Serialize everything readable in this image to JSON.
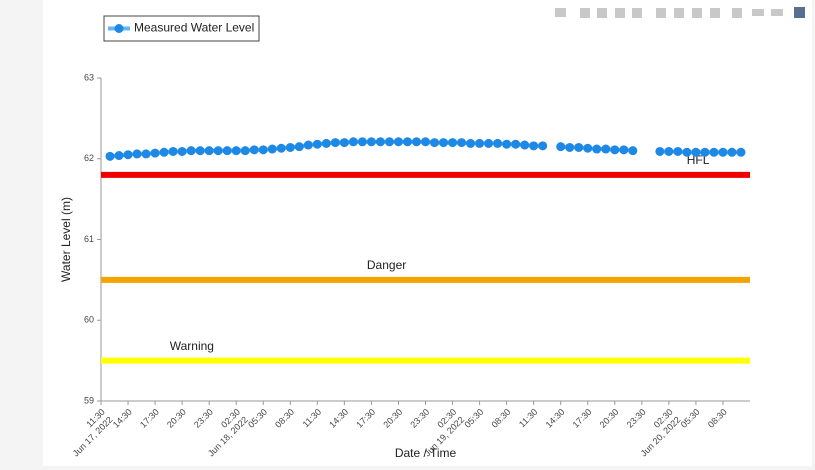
{
  "chart_data": {
    "type": "line",
    "x_label": "Date / Time",
    "y_label": "Water Level (m)",
    "legend": "top left",
    "grid": false,
    "x": [
      "2022-06-17T12:30",
      "2022-06-17T13:30",
      "2022-06-17T14:30",
      "2022-06-17T15:30",
      "2022-06-17T16:30",
      "2022-06-17T17:30",
      "2022-06-17T18:30",
      "2022-06-17T19:30",
      "2022-06-17T20:30",
      "2022-06-17T21:30",
      "2022-06-17T22:30",
      "2022-06-17T23:30",
      "2022-06-18T00:30",
      "2022-06-18T01:30",
      "2022-06-18T02:30",
      "2022-06-18T03:30",
      "2022-06-18T04:30",
      "2022-06-18T05:30",
      "2022-06-18T06:30",
      "2022-06-18T07:30",
      "2022-06-18T08:30",
      "2022-06-18T09:30",
      "2022-06-18T10:30",
      "2022-06-18T11:30",
      "2022-06-18T12:30",
      "2022-06-18T13:30",
      "2022-06-18T14:30",
      "2022-06-18T15:30",
      "2022-06-18T16:30",
      "2022-06-18T17:30",
      "2022-06-18T18:30",
      "2022-06-18T19:30",
      "2022-06-18T20:30",
      "2022-06-18T21:30",
      "2022-06-18T22:30",
      "2022-06-18T23:30",
      "2022-06-19T00:30",
      "2022-06-19T01:30",
      "2022-06-19T02:30",
      "2022-06-19T03:30",
      "2022-06-19T04:30",
      "2022-06-19T05:30",
      "2022-06-19T06:30",
      "2022-06-19T07:30",
      "2022-06-19T08:30",
      "2022-06-19T09:30",
      "2022-06-19T10:30",
      "2022-06-19T11:30",
      "2022-06-19T12:30",
      "2022-06-19T13:30",
      "2022-06-19T14:30",
      "2022-06-19T15:30",
      "2022-06-19T16:30",
      "2022-06-19T17:30",
      "2022-06-19T18:30",
      "2022-06-19T19:30",
      "2022-06-19T20:30",
      "2022-06-19T21:30",
      "2022-06-19T22:30",
      "2022-06-19T23:30",
      "2022-06-20T00:30",
      "2022-06-20T01:30",
      "2022-06-20T02:30",
      "2022-06-20T03:30",
      "2022-06-20T04:30",
      "2022-06-20T05:30",
      "2022-06-20T06:30",
      "2022-06-20T07:30",
      "2022-06-20T08:30",
      "2022-06-20T09:30",
      "2022-06-20T10:30"
    ],
    "series": [
      {
        "name": "Measured Water Level",
        "color": "#1e88e5",
        "line_color": "#64b5f6",
        "values": [
          62.03,
          62.04,
          62.05,
          62.06,
          62.06,
          62.07,
          62.08,
          62.09,
          62.09,
          62.1,
          62.1,
          62.1,
          62.1,
          62.1,
          62.1,
          62.1,
          62.11,
          62.11,
          62.12,
          62.13,
          62.14,
          62.15,
          62.17,
          62.18,
          62.19,
          62.2,
          62.2,
          62.21,
          62.21,
          62.21,
          62.21,
          62.21,
          62.21,
          62.21,
          62.21,
          62.21,
          62.2,
          62.2,
          62.2,
          62.2,
          62.19,
          62.19,
          62.19,
          62.19,
          62.18,
          62.18,
          62.17,
          62.16,
          62.16,
          null,
          62.15,
          62.14,
          62.14,
          62.13,
          62.12,
          62.12,
          62.11,
          62.11,
          62.1,
          null,
          null,
          62.09,
          62.09,
          62.09,
          62.08,
          62.08,
          62.08,
          62.08,
          62.08,
          62.08,
          62.08
        ]
      }
    ],
    "thresholds": [
      {
        "name": "HFL",
        "value": 61.8,
        "color": "#ee0000"
      },
      {
        "name": "Danger",
        "value": 60.5,
        "color": "#f5a300"
      },
      {
        "name": "Warning",
        "value": 59.5,
        "color": "#ffff00"
      }
    ],
    "xlim": [
      "2022-06-17T11:30",
      "2022-06-20T11:30"
    ],
    "xticks": [
      {
        "value": "2022-06-17T11:30",
        "label": "11:30\nJun 17, 2022"
      },
      {
        "value": "2022-06-17T14:30",
        "label": "14:30"
      },
      {
        "value": "2022-06-17T17:30",
        "label": "17:30"
      },
      {
        "value": "2022-06-17T20:30",
        "label": "20:30"
      },
      {
        "value": "2022-06-17T23:30",
        "label": "23:30"
      },
      {
        "value": "2022-06-18T02:30",
        "label": "02:30\nJun 18, 2022"
      },
      {
        "value": "2022-06-18T05:30",
        "label": "05:30"
      },
      {
        "value": "2022-06-18T08:30",
        "label": "08:30"
      },
      {
        "value": "2022-06-18T11:30",
        "label": "11:30"
      },
      {
        "value": "2022-06-18T14:30",
        "label": "14:30"
      },
      {
        "value": "2022-06-18T17:30",
        "label": "17:30"
      },
      {
        "value": "2022-06-18T20:30",
        "label": "20:30"
      },
      {
        "value": "2022-06-18T23:30",
        "label": "23:30"
      },
      {
        "value": "2022-06-19T02:30",
        "label": "02:30\nJun 19, 2022"
      },
      {
        "value": "2022-06-19T05:30",
        "label": "05:30"
      },
      {
        "value": "2022-06-19T08:30",
        "label": "08:30"
      },
      {
        "value": "2022-06-19T11:30",
        "label": "11:30"
      },
      {
        "value": "2022-06-19T14:30",
        "label": "14:30"
      },
      {
        "value": "2022-06-19T17:30",
        "label": "17:30"
      },
      {
        "value": "2022-06-19T20:30",
        "label": "20:30"
      },
      {
        "value": "2022-06-19T23:30",
        "label": "23:30"
      },
      {
        "value": "2022-06-20T02:30",
        "label": "02:30\nJun 20, 2022"
      },
      {
        "value": "2022-06-20T05:30",
        "label": "05:30"
      },
      {
        "value": "2022-06-20T08:30",
        "label": "08:30"
      }
    ],
    "ylim": [
      59,
      63
    ],
    "yticks": [
      59,
      60,
      61,
      62,
      63
    ]
  }
}
